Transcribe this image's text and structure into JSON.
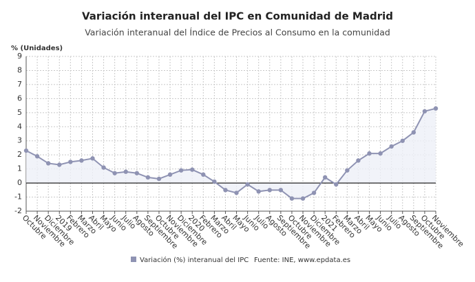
{
  "chart_data": {
    "type": "line",
    "title": "Variación interanual del IPC en Comunidad de Madrid",
    "subtitle": "Variación interanual del Índice de Precios al Consumo en la comunidad",
    "y_label": "% (Unidades)",
    "source": "Fuente: INE, www.epdata.es",
    "categories": [
      "Octubre",
      "Noviembre",
      "Diciembre",
      "2019",
      "Febrero",
      "Marzo",
      "Abril",
      "Mayo",
      "Junio",
      "Julio",
      "Agosto",
      "Septiembre",
      "Octubre",
      "Noviembre",
      "Diciembre",
      "2020",
      "Febrero",
      "Marzo",
      "Abril",
      "Mayo",
      "Junio",
      "Julio",
      "Agosto",
      "Septiembre",
      "Octubre",
      "Noviembre",
      "Diciembre",
      "2021",
      "Febrero",
      "Marzo",
      "Abril",
      "Mayo",
      "Junio",
      "Julio",
      "Agosto",
      "Septiembre",
      "Octubre",
      "Noviembre"
    ],
    "series": [
      {
        "name": "Variación (%) interanual del IPC",
        "color": "#8f93b3",
        "values": [
          2.3,
          1.9,
          1.4,
          1.3,
          1.5,
          1.6,
          1.75,
          1.1,
          0.7,
          0.8,
          0.7,
          0.4,
          0.3,
          0.6,
          0.9,
          0.95,
          0.6,
          0.1,
          -0.5,
          -0.7,
          -0.1,
          -0.6,
          -0.5,
          -0.5,
          -1.1,
          -1.1,
          -0.7,
          0.4,
          -0.1,
          0.9,
          1.6,
          2.1,
          2.1,
          2.6,
          3.0,
          3.6,
          5.1,
          5.3
        ]
      }
    ],
    "ylim": [
      -2,
      9
    ],
    "yticks": [
      -2,
      -1,
      0,
      1,
      2,
      3,
      4,
      5,
      6,
      7,
      8,
      9
    ],
    "grid": true
  }
}
